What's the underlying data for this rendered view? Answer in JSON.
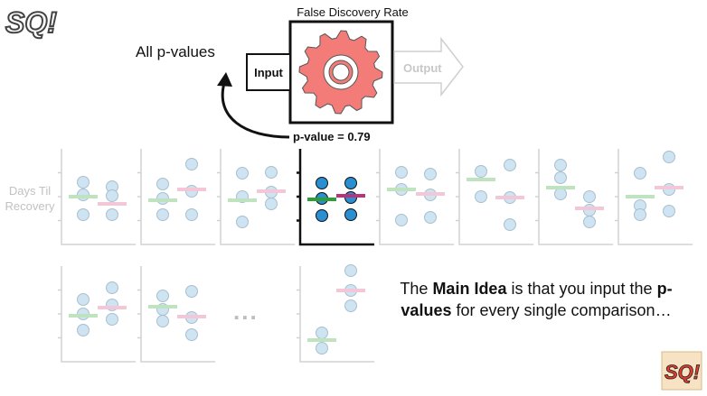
{
  "gear": {
    "title": "False Discovery Rate",
    "input_label": "Input",
    "output_label": "Output",
    "all_pvalues_label": "All p-values",
    "pvalue_label": "p-value = 0.79"
  },
  "plots": {
    "y_axis_label_line1": "Days Til",
    "y_axis_label_line2": "Recovery",
    "ellipsis": "...",
    "highlighted_index": 3,
    "colors": {
      "green_mean": "#2e9e3a",
      "pink_mean": "#b8347a",
      "dot_fill": "#2a8fd0",
      "faded_dot": "#cfe4f2",
      "faded_green": "#bfe3bf",
      "faded_pink": "#f3c6d8"
    }
  },
  "main_idea": {
    "part1": "The ",
    "bold1": "Main Idea",
    "part2": " is that you input the ",
    "bold2": "p-values",
    "part3": " for every single comparison…"
  },
  "logo": {
    "text": "SQ!"
  }
}
